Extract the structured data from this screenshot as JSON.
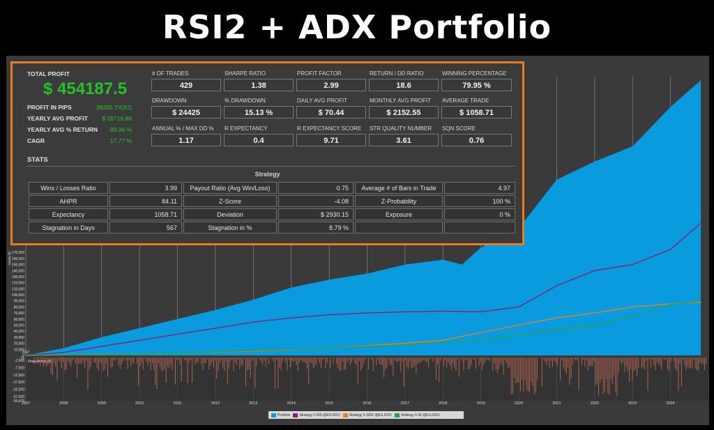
{
  "header": {
    "title": "RSI2 + ADX Portfolio"
  },
  "summary": {
    "total_profit_label": "TOTAL PROFIT",
    "total_profit_value": "$ 454187.5",
    "left_metrics": [
      {
        "label": "PROFIT IN PIPS",
        "value": "36335 TICKS"
      },
      {
        "label": "YEARLY AVG PROFIT",
        "value": "$ 26716.88"
      },
      {
        "label": "YEARLY AVG % RETURN",
        "value": "89.06 %"
      },
      {
        "label": "CAGR",
        "value": "17.77 %"
      }
    ],
    "metrics": [
      {
        "label": "# OF TRADES",
        "value": "429"
      },
      {
        "label": "SHARPE RATIO",
        "value": "1.38"
      },
      {
        "label": "PROFIT FACTOR",
        "value": "2.99"
      },
      {
        "label": "RETURN / DD RATIO",
        "value": "18.6"
      },
      {
        "label": "WINNING PERCENTAGE",
        "value": "79.95 %"
      },
      {
        "label": "DRAWDOWN",
        "value": "$ 24425"
      },
      {
        "label": "% DRAWDOWN",
        "value": "15.13 %"
      },
      {
        "label": "DAILY AVG PROFIT",
        "value": "$ 70.44"
      },
      {
        "label": "MONTHLY AVG PROFIT",
        "value": "$ 2152.55"
      },
      {
        "label": "AVERAGE TRADE",
        "value": "$ 1058.71"
      },
      {
        "label": "ANNUAL % / MAX DD %",
        "value": "1.17"
      },
      {
        "label": "R EXPECTANCY",
        "value": "0.4"
      },
      {
        "label": "R EXPECTANCY SCORE",
        "value": "9.71"
      },
      {
        "label": "STR QUALITY NUMBER",
        "value": "3.61"
      },
      {
        "label": "SQN SCORE",
        "value": "0.76"
      }
    ]
  },
  "stats": {
    "heading": "STATS",
    "table_title": "Strategy",
    "rows": [
      [
        "Wins / Losses Ratio",
        "3.99",
        "Payout Ratio (Avg Win/Loss)",
        "0.75",
        "Average # of Bars in Trade",
        "4.97"
      ],
      [
        "AHPR",
        "84.11",
        "Z-Score",
        "-4.08",
        "Z-Probability",
        "100 %"
      ],
      [
        "Expectancy",
        "1058.71",
        "Deviation",
        "$ 2930.15",
        "Exposure",
        "0 %"
      ],
      [
        "Stagnation in Days",
        "567",
        "Stagnation in %",
        "8.79 %",
        "",
        ""
      ]
    ]
  },
  "chart_data": {
    "type": "area",
    "x_ticks": [
      "2007",
      "2008",
      "2009",
      "2010",
      "2011",
      "2012",
      "2013",
      "2014",
      "2015",
      "2016",
      "2017",
      "2018",
      "2019",
      "2020",
      "2021",
      "2022",
      "2023",
      "2024"
    ],
    "equity_axis": {
      "ylabel": "Equity ($)",
      "ticks": [
        "170,000",
        "160,000",
        "150,000",
        "140,000",
        "130,000",
        "120,000",
        "110,000",
        "100,000",
        "90,000",
        "80,000",
        "70,000",
        "60,000",
        "50,000",
        "40,000",
        "30,000",
        "20,000",
        "10,000",
        "0"
      ],
      "ylim": [
        0,
        460000
      ]
    },
    "drawdown_axis": {
      "ylabel": "Drawdown ($)",
      "ticks": [
        "-2,500",
        "-7,500",
        "-12,500",
        "-17,500",
        "-22,500",
        "-27,500",
        "-30,475"
      ],
      "top_tick": "-11",
      "ylim": [
        -30475,
        0
      ]
    },
    "series": [
      {
        "name": "Portfolio",
        "color": "#0a9bdf",
        "x": [
          2007,
          2008,
          2009,
          2010,
          2011,
          2012,
          2013,
          2014,
          2015,
          2016,
          2017,
          2018,
          2018.5,
          2019,
          2020,
          2021,
          2022,
          2023,
          2024,
          2024.8
        ],
        "y": [
          0,
          12000,
          30000,
          45000,
          60000,
          75000,
          92000,
          112000,
          125000,
          135000,
          150000,
          158000,
          150000,
          178000,
          210000,
          290000,
          320000,
          345000,
          410000,
          454187
        ]
      },
      {
        "name": "Strategy 0.555 @ES.D/D1",
        "color": "#8a1c7c",
        "x": [
          2007,
          2008,
          2009,
          2010,
          2011,
          2012,
          2013,
          2014,
          2015,
          2016,
          2017,
          2018,
          2019,
          2020,
          2021,
          2022,
          2023,
          2024,
          2024.8
        ],
        "y": [
          0,
          5000,
          15000,
          25000,
          35000,
          45000,
          55000,
          62000,
          67000,
          70000,
          72000,
          73000,
          72000,
          80000,
          115000,
          140000,
          150000,
          175000,
          218000
        ]
      },
      {
        "name": "Strategy 0.3352 @ES.D/D1",
        "color": "#e87f22",
        "x": [
          2007,
          2009,
          2011,
          2013,
          2015,
          2016,
          2017,
          2018,
          2019,
          2020,
          2021,
          2022,
          2023,
          2024,
          2024.8
        ],
        "y": [
          0,
          2000,
          4000,
          7000,
          12000,
          16000,
          20000,
          25000,
          38000,
          50000,
          62000,
          70000,
          80000,
          85000,
          88000
        ]
      },
      {
        "name": "Strategy 0.36 @ES.D/D1",
        "color": "#2aa14a",
        "x": [
          2007,
          2009,
          2011,
          2013,
          2015,
          2016,
          2017,
          2018,
          2019,
          2020,
          2021,
          2022,
          2023,
          2024,
          2024.8
        ],
        "y": [
          0,
          1500,
          4000,
          8000,
          12000,
          15000,
          18000,
          22000,
          25000,
          34000,
          42000,
          50000,
          65000,
          84000,
          90000
        ]
      }
    ],
    "legend_position": "bottom",
    "grid": true
  }
}
